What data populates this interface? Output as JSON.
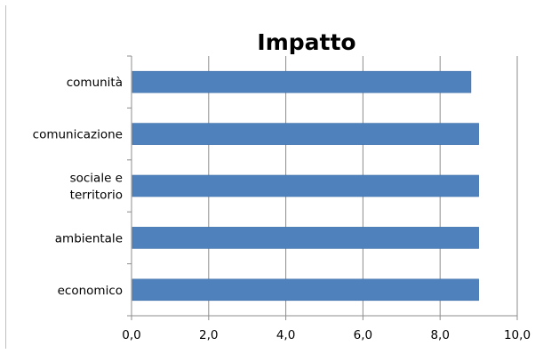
{
  "chart_data": {
    "type": "bar",
    "orientation": "horizontal",
    "title": "Impatto",
    "categories": [
      "comunità",
      "comunicazione",
      "sociale e territorio",
      "ambientale",
      "economico"
    ],
    "category_lines": [
      [
        "comunità"
      ],
      [
        "comunicazione"
      ],
      [
        "sociale e",
        "territorio"
      ],
      [
        "ambientale"
      ],
      [
        "economico"
      ]
    ],
    "values": [
      8.8,
      9.0,
      9.0,
      9.0,
      9.0
    ],
    "xlim": [
      0,
      10
    ],
    "x_ticks": [
      0,
      2,
      4,
      6,
      8,
      10
    ],
    "x_tick_labels": [
      "0,0",
      "2,0",
      "4,0",
      "6,0",
      "8,0",
      "10,0"
    ],
    "xlabel": "",
    "ylabel": "",
    "grid": "vertical",
    "legend": "none",
    "colors": {
      "bar": "#4f81bd",
      "bar_edge": "#3c6fa8",
      "grid": "#8c8c8c",
      "axis": "#8c8c8c"
    }
  }
}
